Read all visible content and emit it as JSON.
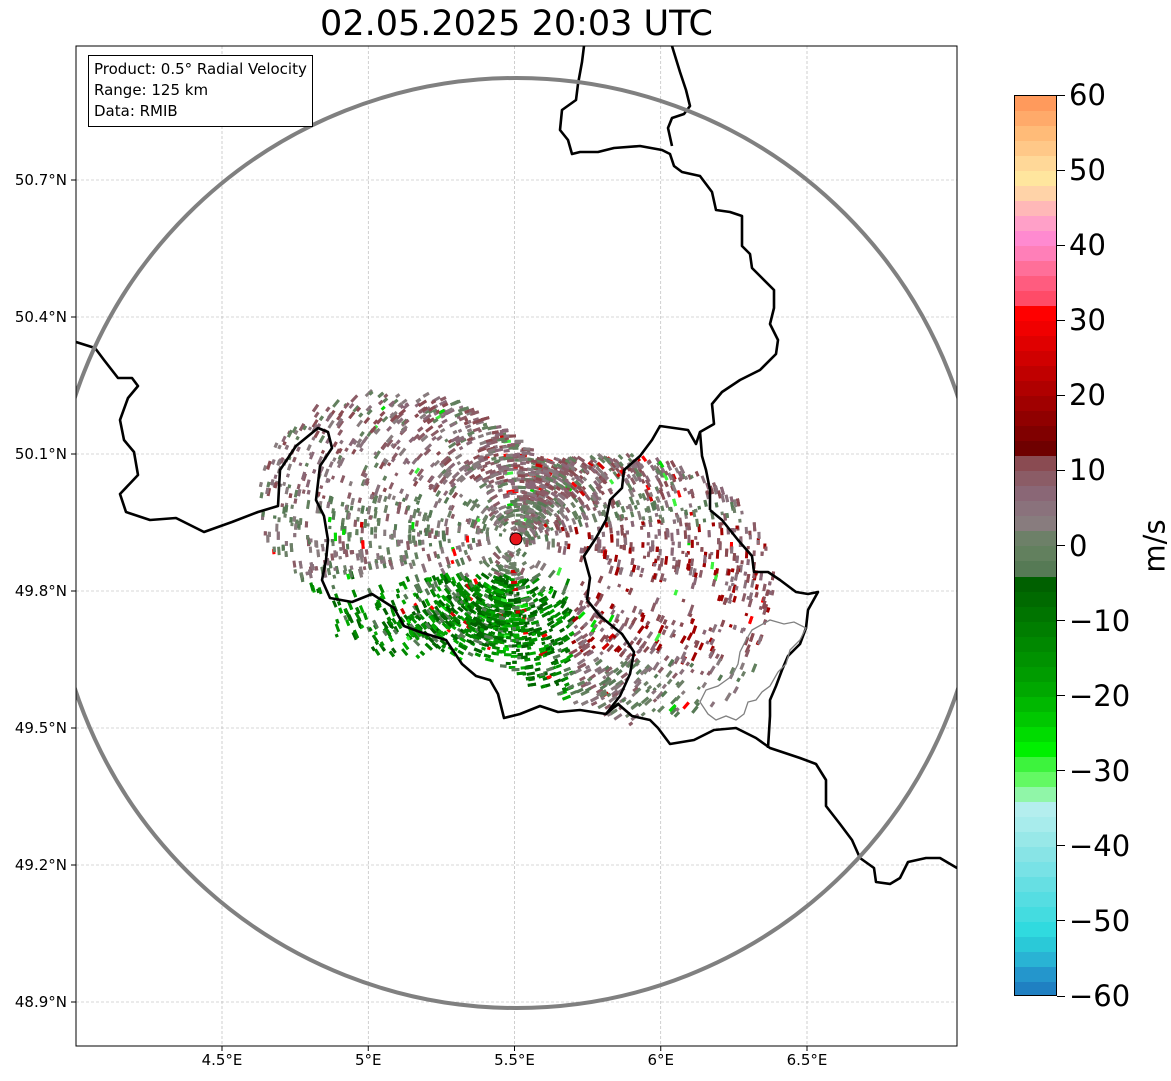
{
  "figure": {
    "title": "02.05.2025 20:03 UTC"
  },
  "info": {
    "product": "Product: 0.5° Radial Velocity",
    "range": "Range: 125 km",
    "source": "Data: RMIB"
  },
  "map": {
    "lon_range": [
      4.0,
      7.0
    ],
    "lat_range": [
      48.8,
      51.0
    ],
    "lat_ticks": [
      {
        "value": 48.9,
        "label": "48.9°N"
      },
      {
        "value": 49.2,
        "label": "49.2°N"
      },
      {
        "value": 49.5,
        "label": "49.5°N"
      },
      {
        "value": 49.8,
        "label": "49.8°N"
      },
      {
        "value": 50.1,
        "label": "50.1°N"
      },
      {
        "value": 50.4,
        "label": "50.4°N"
      },
      {
        "value": 50.7,
        "label": "50.7°N"
      }
    ],
    "lon_ticks": [
      {
        "value": 4.5,
        "label": "4.5°E"
      },
      {
        "value": 5.0,
        "label": "5°E"
      },
      {
        "value": 5.5,
        "label": "5.5°E"
      },
      {
        "value": 6.0,
        "label": "6°E"
      },
      {
        "value": 6.5,
        "label": "6.5°E"
      }
    ],
    "radar_site": {
      "lon": 5.505,
      "lat": 49.914,
      "color": "#e8141b"
    },
    "range_ring_color": "#808080"
  },
  "colorbar": {
    "unit": "m/s",
    "min": -60,
    "max": 60,
    "ticks": [
      {
        "value": 60,
        "label": "60"
      },
      {
        "value": 50,
        "label": "50"
      },
      {
        "value": 40,
        "label": "40"
      },
      {
        "value": 30,
        "label": "30"
      },
      {
        "value": 20,
        "label": "20"
      },
      {
        "value": 10,
        "label": "10"
      },
      {
        "value": 0,
        "label": "0"
      },
      {
        "value": -10,
        "label": "−10"
      },
      {
        "value": -20,
        "label": "−20"
      },
      {
        "value": -30,
        "label": "−30"
      },
      {
        "value": -40,
        "label": "−40"
      },
      {
        "value": -50,
        "label": "−50"
      },
      {
        "value": -60,
        "label": "−60"
      }
    ],
    "colors_top_to_bottom": [
      "#ff9a5c",
      "#ffaa6a",
      "#ffbb78",
      "#ffc888",
      "#ffd898",
      "#ffe69e",
      "#ffd3a8",
      "#ffb8b8",
      "#ffa0c8",
      "#ff8ad0",
      "#ff7fb8",
      "#ff6f99",
      "#ff5c7f",
      "#ff4b68",
      "#ff0000",
      "#f00000",
      "#e00000",
      "#d00000",
      "#c00000",
      "#b00000",
      "#a00000",
      "#900000",
      "#800000",
      "#6f0000",
      "#8a4b52",
      "#8b5c66",
      "#8a6776",
      "#8a727c",
      "#887c7e",
      "#6d8068",
      "#62805e",
      "#567a55",
      "#006000",
      "#006a00",
      "#007400",
      "#007e00",
      "#008800",
      "#009200",
      "#009c00",
      "#00a800",
      "#00b800",
      "#00c800",
      "#00dc00",
      "#00f000",
      "#3df33d",
      "#63f963",
      "#90f6a8",
      "#b4eeee",
      "#a8ecec",
      "#98e8e8",
      "#88e4e6",
      "#78e2e6",
      "#66dfe3",
      "#55dde2",
      "#44dce0",
      "#30dadf",
      "#2ac9d8",
      "#29b3d4",
      "#2496cc",
      "#1f80c2"
    ]
  }
}
